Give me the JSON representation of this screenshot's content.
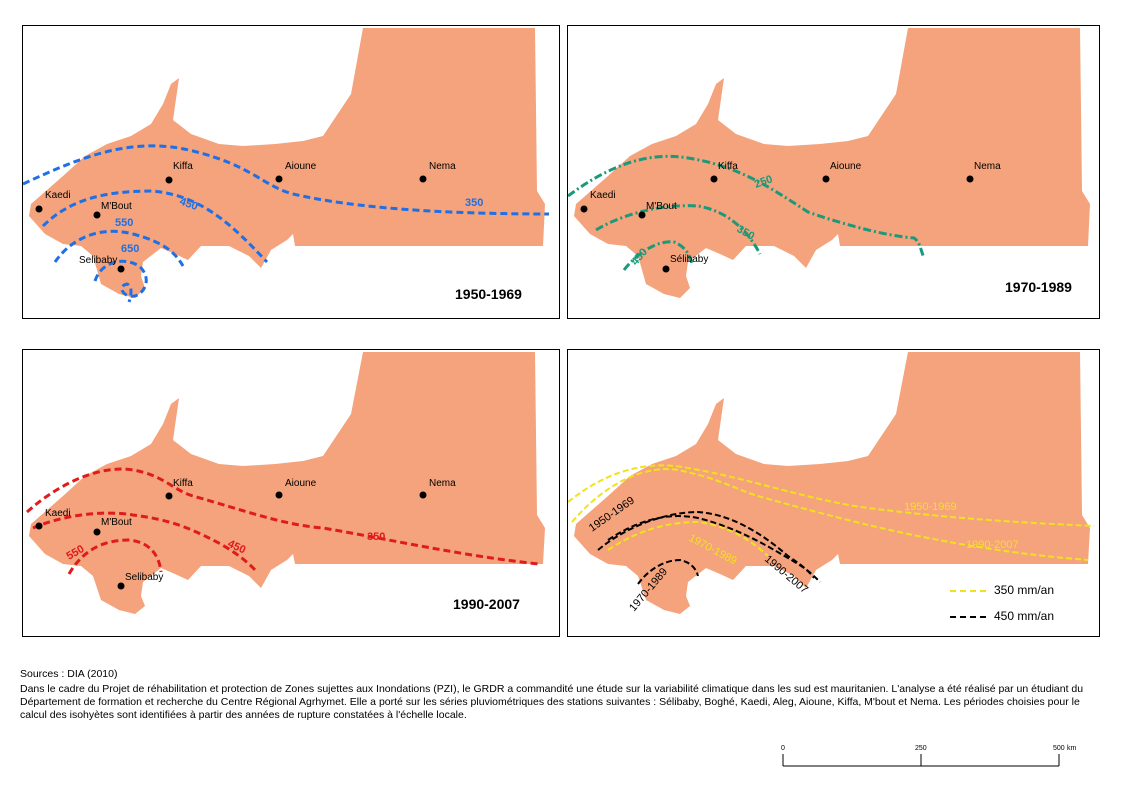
{
  "panels": [
    {
      "period": "1950-1969",
      "color": "#1f6fe5",
      "cities": [
        "Kaedi",
        "M'Bout",
        "Selibaby",
        "Kiffa",
        "Aioune",
        "Nema"
      ],
      "isohyets": [
        "350",
        "450",
        "550",
        "650"
      ]
    },
    {
      "period": "1970-1989",
      "color": "#1a9a7a",
      "cities": [
        "Kaedi",
        "M'Bout",
        "Sélibaby",
        "Kiffa",
        "Aioune",
        "Nema"
      ],
      "isohyets": [
        "250",
        "350",
        "450"
      ]
    },
    {
      "period": "1990-2007",
      "color": "#e01b1b",
      "cities": [
        "Kaedi",
        "M'Bout",
        "Selibaby",
        "Kiffa",
        "Aioune",
        "Nema"
      ],
      "isohyets": [
        "350",
        "450",
        "550"
      ]
    },
    {
      "comparison_labels": {
        "yellow_1950": "1950-1969",
        "yellow_1990": "1990-2007",
        "yellow_1970": "1970-1989",
        "black_1950": "1950-1969",
        "black_1990": "1990-2007",
        "black_1970": "1970-1989"
      },
      "legend": [
        {
          "label": "350 mm/an",
          "color": "#f2e21d"
        },
        {
          "label": "450 mm/an",
          "color": "#000000"
        }
      ]
    }
  ],
  "map_fill": "#f4a37c",
  "footer": {
    "sources": "Sources :  DIA  (2010)",
    "text": "Dans le cadre du Projet de réhabilitation et protection de Zones sujettes aux Inondations (PZI), le GRDR a commandité une étude sur la variabilité climatique dans les sud est mauritanien. L'analyse a été réalisé par un  étudiant du Département de formation et recherche du Centre Régional Agrhymet. Elle a porté sur les séries pluviométriques des stations suivantes : Sélibaby, Boghé, Kaedi, Aleg, Aioune, Kiffa, M'bout et Nema. Les périodes choisies pour le calcul des isohyètes sont identifiées à partir des années de rupture constatées à l'échelle locale."
  },
  "scalebar": {
    "ticks": [
      "0",
      "250",
      "500"
    ],
    "unit": "km"
  }
}
